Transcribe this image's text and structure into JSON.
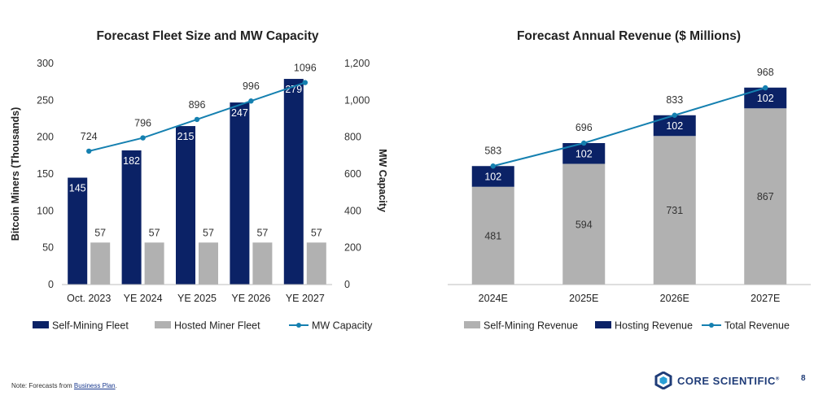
{
  "colors": {
    "navy": "#0b2266",
    "gray": "#b1b1b1",
    "line": "#1580b0",
    "text": "#222222"
  },
  "chart_data": [
    {
      "type": "bar",
      "title": "Forecast Fleet Size and MW Capacity",
      "ylabel": "Bitcoin Miners (Thousands)",
      "y2label": "MW Capacity",
      "categories": [
        "Oct. 2023",
        "YE 2024",
        "YE 2025",
        "YE 2026",
        "YE 2027"
      ],
      "ylim": [
        0,
        300
      ],
      "yticks": [
        "0",
        "50",
        "100",
        "150",
        "200",
        "250",
        "300"
      ],
      "y2lim": [
        0,
        1200
      ],
      "y2ticks": [
        "0",
        "200",
        "400",
        "600",
        "800",
        "1,000",
        "1,200"
      ],
      "grid": false,
      "legend_position": "bottom",
      "series": [
        {
          "name": "Self-Mining Fleet",
          "kind": "bar",
          "axis": "left",
          "color": "#0b2266",
          "values": [
            145,
            182,
            215,
            247,
            279
          ]
        },
        {
          "name": "Hosted Miner Fleet",
          "kind": "bar",
          "axis": "left",
          "color": "#b1b1b1",
          "values": [
            57,
            57,
            57,
            57,
            57
          ]
        },
        {
          "name": "MW Capacity",
          "kind": "line",
          "axis": "right",
          "color": "#1580b0",
          "values": [
            724,
            796,
            896,
            996,
            1096
          ]
        }
      ]
    },
    {
      "type": "bar",
      "title": "Forecast Annual Revenue ($ Millions)",
      "categories": [
        "2024E",
        "2025E",
        "2026E",
        "2027E"
      ],
      "stacked": true,
      "ylim": [
        0,
        1100
      ],
      "grid": false,
      "legend_position": "bottom",
      "series": [
        {
          "name": "Self-Mining Revenue",
          "kind": "bar",
          "color": "#b1b1b1",
          "values": [
            481,
            594,
            731,
            867
          ]
        },
        {
          "name": "Hosting Revenue",
          "kind": "bar",
          "color": "#0b2266",
          "values": [
            102,
            102,
            102,
            102
          ]
        },
        {
          "name": "Total Revenue",
          "kind": "line",
          "color": "#1580b0",
          "values": [
            583,
            696,
            833,
            968
          ]
        }
      ]
    }
  ],
  "footnote": {
    "prefix": "Note: Forecasts from ",
    "link": "Business Plan",
    "suffix": "."
  },
  "brand": {
    "name": "CORE SCIENTIFIC",
    "trademark": "®"
  },
  "page_number": "8"
}
